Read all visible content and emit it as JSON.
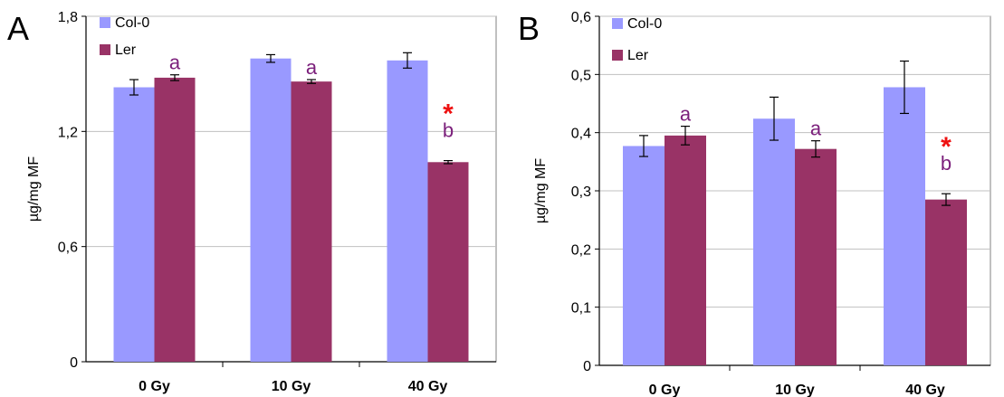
{
  "colors": {
    "col0": "#9999ff",
    "ler": "#993366",
    "annotation": "#7b1f7b",
    "significance": "#ee1111",
    "grid": "#c0c0c0"
  },
  "chart_data": [
    {
      "panel": "A",
      "type": "bar",
      "ylabel": "µg/mg MF",
      "ylim": [
        0,
        1.8
      ],
      "yticks": [
        "0",
        "0,6",
        "1,2",
        "1,8"
      ],
      "categories": [
        "0 Gy",
        "10 Gy",
        "40 Gy"
      ],
      "grid": true,
      "legend_position": "top-left",
      "series": [
        {
          "name": "Col-0",
          "values": [
            1.43,
            1.58,
            1.57
          ],
          "errors": [
            0.04,
            0.02,
            0.04
          ]
        },
        {
          "name": "Ler",
          "values": [
            1.48,
            1.46,
            1.04
          ],
          "errors": [
            0.015,
            0.01,
            0.008
          ]
        }
      ],
      "annotations": [
        {
          "category": 0,
          "series": 1,
          "letter": "a",
          "star": ""
        },
        {
          "category": 1,
          "series": 1,
          "letter": "a",
          "star": ""
        },
        {
          "category": 2,
          "series": 1,
          "letter": "b",
          "star": "*"
        }
      ]
    },
    {
      "panel": "B",
      "type": "bar",
      "ylabel": "µg/mg MF",
      "ylim": [
        0,
        0.6
      ],
      "yticks": [
        "0",
        "0,1",
        "0,2",
        "0,3",
        "0,4",
        "0,5",
        "0,6"
      ],
      "categories": [
        "0 Gy",
        "10 Gy",
        "40 Gy"
      ],
      "grid": true,
      "legend_position": "top-left",
      "series": [
        {
          "name": "Col-0",
          "values": [
            0.377,
            0.424,
            0.478
          ],
          "errors": [
            0.018,
            0.037,
            0.045
          ]
        },
        {
          "name": "Ler",
          "values": [
            0.395,
            0.372,
            0.285
          ],
          "errors": [
            0.016,
            0.014,
            0.01
          ]
        }
      ],
      "annotations": [
        {
          "category": 0,
          "series": 1,
          "letter": "a",
          "star": ""
        },
        {
          "category": 1,
          "series": 1,
          "letter": "a",
          "star": ""
        },
        {
          "category": 2,
          "series": 1,
          "letter": "b",
          "star": "*"
        }
      ]
    }
  ]
}
